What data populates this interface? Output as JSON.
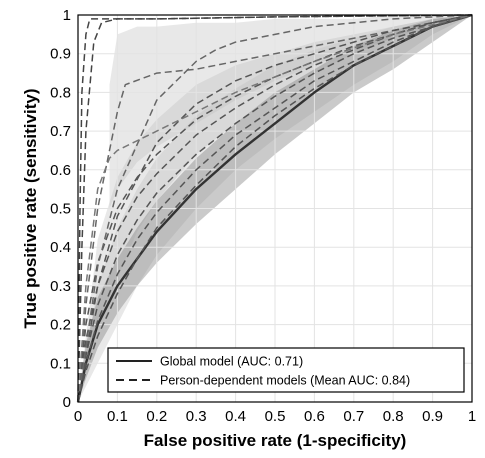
{
  "chart_data": {
    "type": "line",
    "title": "",
    "xlabel": "False positive rate (1-specificity)",
    "ylabel": "True positive rate (sensitivity)",
    "xlim": [
      0,
      1
    ],
    "ylim": [
      0,
      1
    ],
    "xticks": [
      "0",
      "0.1",
      "0.2",
      "0.3",
      "0.4",
      "0.5",
      "0.6",
      "0.7",
      "0.8",
      "0.9",
      "1"
    ],
    "yticks": [
      "0",
      "0.1",
      "0.2",
      "0.3",
      "0.4",
      "0.5",
      "0.6",
      "0.7",
      "0.8",
      "0.9",
      "1"
    ],
    "grid": true,
    "legend": {
      "placement": "bottom-right",
      "entries": [
        {
          "label": "Global model (AUC: 0.71)",
          "style": "solid"
        },
        {
          "label": "Person-dependent models (Mean AUC: 0.84)",
          "style": "dashed"
        }
      ]
    },
    "series": [
      {
        "name": "Global model (AUC: 0.71)",
        "style": "solid",
        "color": "#333333",
        "x": [
          0,
          0.02,
          0.05,
          0.1,
          0.15,
          0.2,
          0.3,
          0.4,
          0.5,
          0.6,
          0.7,
          0.8,
          0.9,
          1.0
        ],
        "y": [
          0,
          0.1,
          0.2,
          0.3,
          0.37,
          0.44,
          0.55,
          0.64,
          0.72,
          0.8,
          0.87,
          0.92,
          0.97,
          1.0
        ],
        "band_low": [
          0,
          0.06,
          0.14,
          0.23,
          0.3,
          0.36,
          0.46,
          0.55,
          0.64,
          0.72,
          0.8,
          0.86,
          0.93,
          1.0
        ],
        "band_high": [
          0,
          0.15,
          0.27,
          0.37,
          0.45,
          0.52,
          0.63,
          0.72,
          0.8,
          0.86,
          0.92,
          0.96,
          0.99,
          1.0
        ]
      },
      {
        "style": "dashed",
        "color": "#444444",
        "x": [
          0,
          0.005,
          0.01,
          0.02,
          0.03,
          0.05,
          0.1,
          0.2,
          0.5,
          1.0
        ],
        "y": [
          0,
          0.5,
          0.8,
          0.95,
          0.99,
          0.99,
          0.99,
          0.99,
          0.995,
          1.0
        ]
      },
      {
        "style": "dashed",
        "color": "#444444",
        "x": [
          0,
          0.01,
          0.02,
          0.04,
          0.06,
          0.1,
          0.2,
          0.5,
          1.0
        ],
        "y": [
          0,
          0.4,
          0.7,
          0.93,
          0.98,
          0.99,
          0.99,
          0.995,
          1.0
        ]
      },
      {
        "style": "dashed",
        "color": "#666666",
        "x": [
          0,
          0.02,
          0.05,
          0.08,
          0.1,
          0.12,
          0.2,
          0.3,
          0.4,
          0.6,
          0.8,
          1.0
        ],
        "y": [
          0,
          0.25,
          0.5,
          0.65,
          0.75,
          0.82,
          0.85,
          0.86,
          0.88,
          0.92,
          0.96,
          1.0
        ]
      },
      {
        "style": "dashed",
        "color": "#555555",
        "x": [
          0,
          0.02,
          0.05,
          0.1,
          0.15,
          0.2,
          0.3,
          0.4,
          0.5,
          0.6,
          0.7,
          0.8,
          0.9,
          1.0
        ],
        "y": [
          0,
          0.2,
          0.36,
          0.5,
          0.58,
          0.64,
          0.73,
          0.79,
          0.84,
          0.88,
          0.92,
          0.95,
          0.98,
          1.0
        ]
      },
      {
        "style": "dashed",
        "color": "#555555",
        "x": [
          0,
          0.02,
          0.05,
          0.1,
          0.15,
          0.2,
          0.3,
          0.4,
          0.5,
          0.6,
          0.7,
          0.8,
          0.9,
          1.0
        ],
        "y": [
          0,
          0.16,
          0.3,
          0.44,
          0.53,
          0.59,
          0.69,
          0.76,
          0.82,
          0.87,
          0.91,
          0.95,
          0.98,
          1.0
        ]
      },
      {
        "style": "dashed",
        "color": "#555555",
        "x": [
          0,
          0.02,
          0.05,
          0.1,
          0.15,
          0.2,
          0.3,
          0.4,
          0.5,
          0.6,
          0.7,
          0.8,
          0.9,
          1.0
        ],
        "y": [
          0,
          0.12,
          0.25,
          0.38,
          0.47,
          0.54,
          0.64,
          0.72,
          0.79,
          0.85,
          0.9,
          0.94,
          0.97,
          1.0
        ]
      },
      {
        "style": "dashed",
        "color": "#555555",
        "x": [
          0,
          0.02,
          0.05,
          0.1,
          0.15,
          0.2,
          0.3,
          0.4,
          0.5,
          0.6,
          0.7,
          0.8,
          0.9,
          1.0
        ],
        "y": [
          0,
          0.1,
          0.21,
          0.33,
          0.42,
          0.49,
          0.6,
          0.69,
          0.76,
          0.83,
          0.88,
          0.93,
          0.97,
          1.0
        ]
      },
      {
        "style": "dashed",
        "color": "#555555",
        "x": [
          0,
          0.02,
          0.05,
          0.1,
          0.15,
          0.2,
          0.3,
          0.4,
          0.5,
          0.6,
          0.7,
          0.8,
          0.9,
          1.0
        ],
        "y": [
          0,
          0.08,
          0.17,
          0.28,
          0.37,
          0.45,
          0.56,
          0.66,
          0.74,
          0.81,
          0.87,
          0.92,
          0.97,
          1.0
        ]
      },
      {
        "style": "dashed",
        "color": "#555555",
        "x": [
          0,
          0.05,
          0.1,
          0.2,
          0.3,
          0.4,
          0.5,
          0.6,
          0.7,
          0.8,
          0.9,
          1.0
        ],
        "y": [
          0,
          0.3,
          0.48,
          0.67,
          0.77,
          0.83,
          0.87,
          0.9,
          0.93,
          0.96,
          0.98,
          1.0
        ]
      },
      {
        "style": "dashed",
        "color": "#666666",
        "x": [
          0,
          0.05,
          0.1,
          0.2,
          0.3,
          0.35,
          0.4,
          0.5,
          0.6,
          0.8,
          1.0
        ],
        "y": [
          0,
          0.35,
          0.55,
          0.78,
          0.88,
          0.91,
          0.93,
          0.95,
          0.97,
          0.99,
          1.0
        ]
      },
      {
        "style": "dashed",
        "color": "#777777",
        "x": [
          0,
          0.02,
          0.05,
          0.08,
          0.1,
          0.2,
          0.4,
          0.6,
          0.8,
          1.0
        ],
        "y": [
          0,
          0.3,
          0.55,
          0.63,
          0.65,
          0.7,
          0.8,
          0.88,
          0.95,
          1.0
        ]
      }
    ],
    "bands": [
      {
        "x": [
          0,
          0.05,
          0.1,
          0.15,
          0.2,
          0.3,
          0.4,
          0.5,
          0.6,
          0.7,
          0.8,
          0.9,
          1.0
        ],
        "low": [
          0,
          0.2,
          0.32,
          0.44,
          0.52,
          0.64,
          0.72,
          0.79,
          0.85,
          0.9,
          0.94,
          0.98,
          1.0
        ],
        "high": [
          0,
          0.42,
          0.58,
          0.67,
          0.73,
          0.82,
          0.87,
          0.9,
          0.93,
          0.95,
          0.97,
          0.99,
          1.0
        ]
      },
      {
        "x": [
          0,
          0.05,
          0.1,
          0.15,
          0.2,
          0.3,
          0.4,
          0.5,
          0.6,
          0.7,
          0.8,
          0.9,
          1.0
        ],
        "low": [
          0,
          0.1,
          0.2,
          0.3,
          0.38,
          0.5,
          0.6,
          0.68,
          0.75,
          0.82,
          0.88,
          0.95,
          1.0
        ],
        "high": [
          0,
          0.3,
          0.45,
          0.55,
          0.63,
          0.74,
          0.81,
          0.87,
          0.91,
          0.94,
          0.97,
          0.99,
          1.0
        ]
      },
      {
        "x": [
          0.08,
          0.1,
          0.15,
          0.2,
          0.3,
          0.4,
          0.5,
          0.6,
          0.7,
          0.8,
          0.9,
          1.0
        ],
        "low": [
          0.5,
          0.55,
          0.62,
          0.66,
          0.72,
          0.78,
          0.83,
          0.87,
          0.91,
          0.94,
          0.97,
          1.0
        ],
        "high": [
          0.82,
          0.95,
          0.97,
          0.97,
          0.98,
          0.98,
          0.99,
          0.99,
          0.99,
          1.0,
          1.0,
          1.0
        ]
      }
    ]
  }
}
